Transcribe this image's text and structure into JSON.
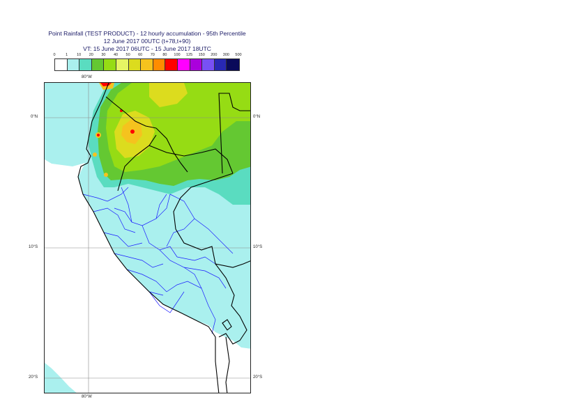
{
  "title": {
    "line1": "Point Rainfall (TEST PRODUCT) - 12 hourly accumulation - 95th Percentile",
    "line2": "12 June 2017 00UTC (t+78,t+90)",
    "line3": "VT: 15 June 2017 06UTC - 15 June 2017 18UTC"
  },
  "legend": {
    "thresholds": [
      "0",
      "1",
      "10",
      "20",
      "30",
      "40",
      "50",
      "60",
      "70",
      "80",
      "100",
      "125",
      "150",
      "200",
      "300",
      "500"
    ],
    "colors": [
      "#ffffff",
      "#aaf0ee",
      "#5adcc0",
      "#64c832",
      "#96dc14",
      "#e6f564",
      "#dcdc1e",
      "#f5c31e",
      "#ff8c00",
      "#ff0000",
      "#ff00ff",
      "#aa00dc",
      "#7850f5",
      "#2828b4",
      "#0a0a5a"
    ]
  },
  "map": {
    "lon_labels": [
      "80°W",
      "80°W"
    ],
    "lat_labels": {
      "left": [
        "0°N",
        "10°S",
        "20°S"
      ],
      "right": [
        "0°N",
        "10°S",
        "20°S"
      ]
    },
    "colors": {
      "ocean_light": "#aaf0ee",
      "teal": "#5adcc0",
      "green": "#64c832",
      "lime": "#96dc14",
      "yellow": "#dcdc1e",
      "orange": "#f5c31e",
      "red": "#ff0000",
      "border": "#000000",
      "admin": "#1a1aff",
      "grid": "#888888"
    }
  }
}
